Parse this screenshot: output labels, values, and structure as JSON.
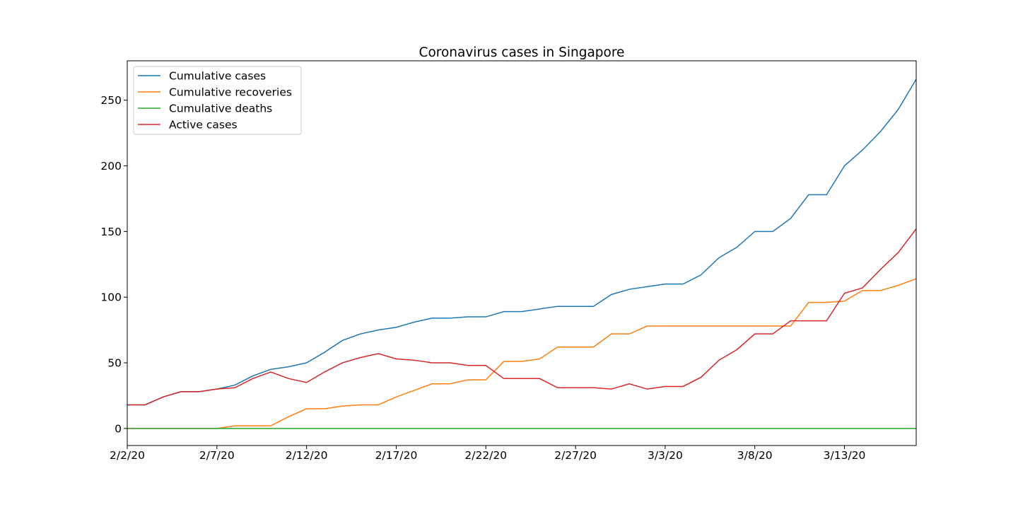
{
  "chart_data": {
    "type": "line",
    "title": "Coronavirus cases in Singapore",
    "xlabel": "",
    "ylabel": "",
    "ylim": [
      -13,
      280
    ],
    "yticks": [
      0,
      50,
      100,
      150,
      200,
      250
    ],
    "xtick_labels": [
      "2/2/20",
      "2/7/20",
      "2/12/20",
      "2/17/20",
      "2/22/20",
      "2/27/20",
      "3/3/20",
      "3/8/20",
      "3/13/20"
    ],
    "xtick_positions": [
      0,
      5,
      10,
      15,
      20,
      25,
      30,
      35,
      40
    ],
    "xlim": [
      0,
      44
    ],
    "x": [
      "2/2/20",
      "2/3/20",
      "2/4/20",
      "2/5/20",
      "2/6/20",
      "2/7/20",
      "2/8/20",
      "2/9/20",
      "2/10/20",
      "2/11/20",
      "2/12/20",
      "2/13/20",
      "2/14/20",
      "2/15/20",
      "2/16/20",
      "2/17/20",
      "2/18/20",
      "2/19/20",
      "2/20/20",
      "2/21/20",
      "2/22/20",
      "2/23/20",
      "2/24/20",
      "2/25/20",
      "2/26/20",
      "2/27/20",
      "2/28/20",
      "2/29/20",
      "3/1/20",
      "3/2/20",
      "3/3/20",
      "3/4/20",
      "3/5/20",
      "3/6/20",
      "3/7/20",
      "3/8/20",
      "3/9/20",
      "3/10/20",
      "3/11/20",
      "3/12/20",
      "3/13/20",
      "3/14/20",
      "3/15/20",
      "3/16/20",
      "3/17/20"
    ],
    "grid": false,
    "legend_position": "top-left",
    "series": [
      {
        "name": "Cumulative cases",
        "color": "#1f77b4",
        "values": [
          18,
          18,
          24,
          28,
          28,
          30,
          33,
          40,
          45,
          47,
          50,
          58,
          67,
          72,
          75,
          77,
          81,
          84,
          84,
          85,
          85,
          89,
          89,
          91,
          93,
          93,
          93,
          102,
          106,
          108,
          110,
          110,
          117,
          130,
          138,
          150,
          150,
          160,
          178,
          178,
          200,
          212,
          226,
          243,
          266
        ]
      },
      {
        "name": "Cumulative recoveries",
        "color": "#ff7f0e",
        "values": [
          0,
          0,
          0,
          0,
          0,
          0,
          2,
          2,
          2,
          9,
          15,
          15,
          17,
          18,
          18,
          24,
          29,
          34,
          34,
          37,
          37,
          51,
          51,
          53,
          62,
          62,
          62,
          72,
          72,
          78,
          78,
          78,
          78,
          78,
          78,
          78,
          78,
          78,
          96,
          96,
          97,
          105,
          105,
          109,
          114
        ]
      },
      {
        "name": "Cumulative deaths",
        "color": "#2ca02c",
        "values": [
          0,
          0,
          0,
          0,
          0,
          0,
          0,
          0,
          0,
          0,
          0,
          0,
          0,
          0,
          0,
          0,
          0,
          0,
          0,
          0,
          0,
          0,
          0,
          0,
          0,
          0,
          0,
          0,
          0,
          0,
          0,
          0,
          0,
          0,
          0,
          0,
          0,
          0,
          0,
          0,
          0,
          0,
          0,
          0,
          0
        ]
      },
      {
        "name": "Active cases",
        "color": "#d62728",
        "values": [
          18,
          18,
          24,
          28,
          28,
          30,
          31,
          38,
          43,
          38,
          35,
          43,
          50,
          54,
          57,
          53,
          52,
          50,
          50,
          48,
          48,
          38,
          38,
          38,
          31,
          31,
          31,
          30,
          34,
          30,
          32,
          32,
          39,
          52,
          60,
          72,
          72,
          82,
          82,
          82,
          103,
          107,
          121,
          134,
          152
        ]
      }
    ]
  }
}
